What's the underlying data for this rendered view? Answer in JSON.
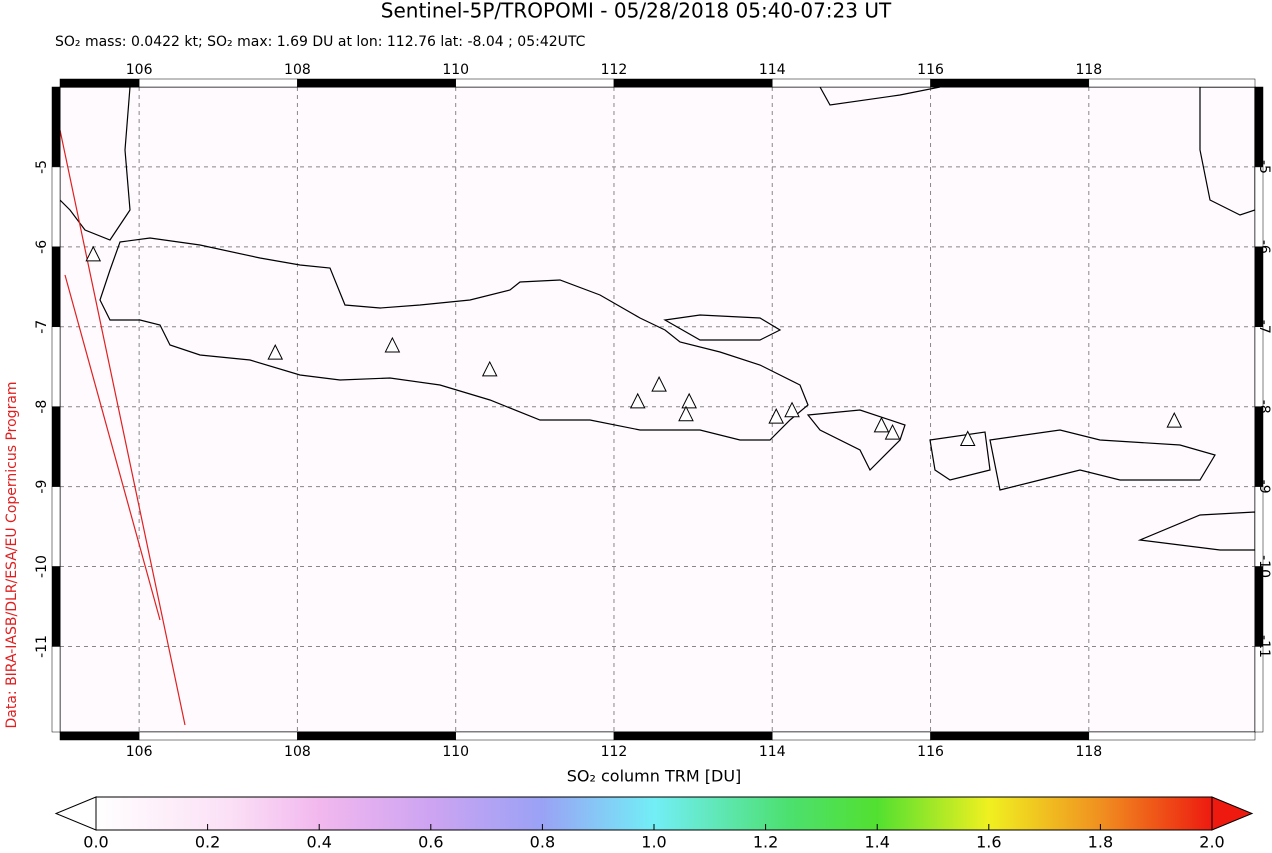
{
  "chart_data": {
    "type": "map",
    "title": "Sentinel-5P/TROPOMI - 05/28/2018 05:40-07:23 UT",
    "subtitle": "SO₂ mass: 0.0422 kt; SO₂ max: 1.69 DU at lon: 112.76 lat: -8.04 ; 05:42UTC",
    "credit": "Data: BIRA-IASB/DLR/ESA/EU Copernicus Program",
    "xlim": [
      105,
      120.1
    ],
    "ylim": [
      -12.07,
      -4
    ],
    "xticks": [
      106,
      108,
      110,
      112,
      114,
      116,
      118
    ],
    "yticks": [
      -5,
      -6,
      -7,
      -8,
      -9,
      -10,
      -11
    ],
    "grid": true,
    "volcanoes": {
      "x": [
        105.42,
        107.72,
        109.2,
        110.43,
        112.3,
        112.57,
        112.95,
        112.91,
        114.05,
        114.25,
        115.38,
        115.52,
        116.47,
        119.08
      ],
      "y": [
        -6.1,
        -7.33,
        -7.24,
        -7.54,
        -7.94,
        -7.73,
        -7.94,
        -8.1,
        -8.13,
        -8.05,
        -8.24,
        -8.33,
        -8.41,
        -8.18
      ]
    },
    "colorbar": {
      "label": "SO₂ column TRM [DU]",
      "lim": [
        0,
        2
      ],
      "ticks": [
        {
          "value": 0,
          "label": "0.0"
        },
        0.2,
        0.4,
        0.6,
        0.8,
        {
          "value": 1,
          "label": "1.0"
        },
        1.2,
        1.4,
        1.6,
        1.8,
        {
          "value": 2,
          "label": "2.0"
        }
      ]
    }
  }
}
